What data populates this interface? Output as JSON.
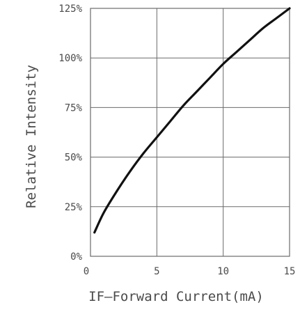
{
  "chart_data": {
    "type": "line",
    "xlabel": "IF–Forward  Current(mA)",
    "ylabel": "Relative  Intensity",
    "xlim": [
      0,
      15
    ],
    "ylim": [
      0,
      125
    ],
    "x_ticks": [
      "0",
      "5",
      "10",
      "15"
    ],
    "y_ticks": [
      "0%",
      "25%",
      "50%",
      "75%",
      "100%",
      "125%"
    ],
    "grid": true,
    "series": [
      {
        "x": [
          0.3,
          1,
          2,
          3,
          4,
          5,
          6,
          7,
          8,
          9,
          10,
          11,
          12,
          13,
          14,
          15
        ],
        "y": [
          12,
          22,
          33,
          43,
          52,
          60,
          68,
          76,
          83,
          90,
          97,
          103,
          109,
          115,
          120,
          125
        ]
      }
    ]
  },
  "colors": {
    "line": "#111111",
    "grid": "#6a6a6a",
    "text": "#4a4a4a"
  }
}
